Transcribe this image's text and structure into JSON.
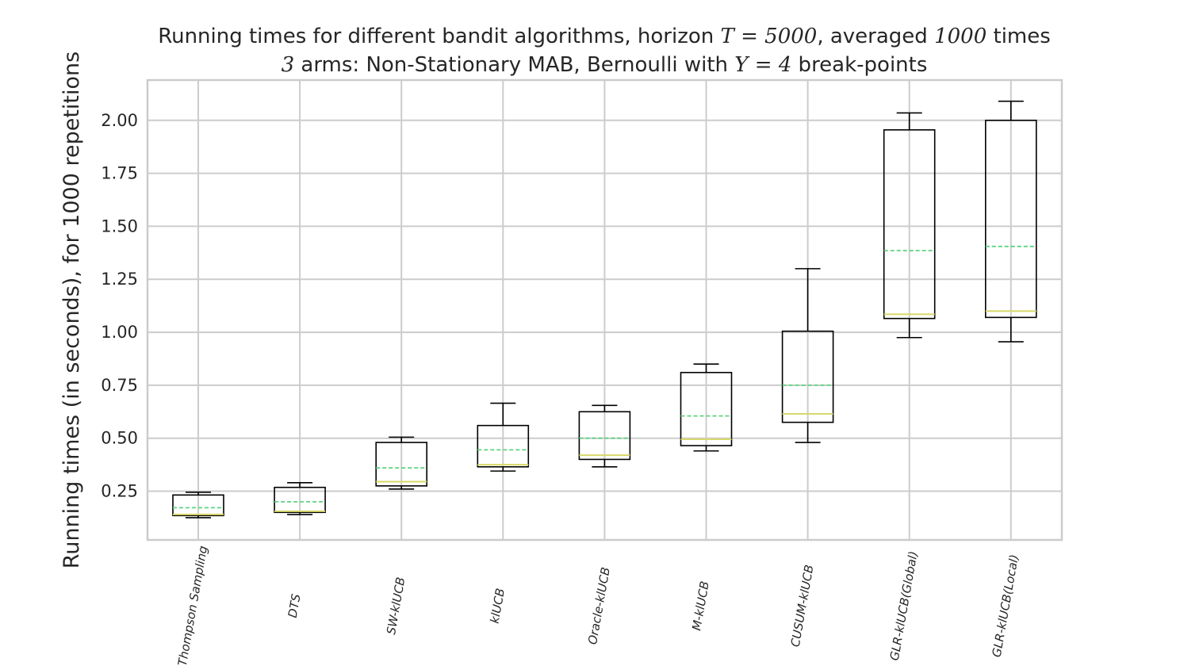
{
  "chart_data": {
    "type": "box",
    "title_line1": {
      "prefix": "Running times for different bandit algorithms, horizon ",
      "math1": "T = 5000",
      "middle": ", averaged ",
      "math2": "1000",
      "suffix": " times"
    },
    "title_line2": {
      "math1": "3",
      "middle": " arms: Non-Stationary MAB, Bernoulli with ",
      "math2": "Υ = 4",
      "suffix": " break-points"
    },
    "ylabel": "Running times (in seconds), for 1000 repetitions",
    "xlabel": "",
    "ylim": [
      0.02,
      2.19
    ],
    "yticks": [
      0.25,
      0.5,
      0.75,
      1.0,
      1.25,
      1.5,
      1.75,
      2.0
    ],
    "ytick_labels": [
      "0.25",
      "0.50",
      "0.75",
      "1.00",
      "1.25",
      "1.50",
      "1.75",
      "2.00"
    ],
    "grid": true,
    "categories": [
      "Thompson Sampling",
      "DTS",
      "SW-klUCB",
      "klUCB",
      "Oracle-klUCB",
      "M-klUCB",
      "CUSUM-klUCB",
      "GLR-klUCB(Global)",
      "GLR-klUCB(Local)"
    ],
    "boxes": [
      {
        "whislo": 0.125,
        "q1": 0.135,
        "med": 0.14,
        "mean": 0.172,
        "q3": 0.232,
        "whishi": 0.245
      },
      {
        "whislo": 0.14,
        "q1": 0.15,
        "med": 0.155,
        "mean": 0.2,
        "q3": 0.268,
        "whishi": 0.29
      },
      {
        "whislo": 0.26,
        "q1": 0.275,
        "med": 0.295,
        "mean": 0.36,
        "q3": 0.48,
        "whishi": 0.505
      },
      {
        "whislo": 0.345,
        "q1": 0.365,
        "med": 0.375,
        "mean": 0.445,
        "q3": 0.56,
        "whishi": 0.665
      },
      {
        "whislo": 0.365,
        "q1": 0.4,
        "med": 0.42,
        "mean": 0.5,
        "q3": 0.625,
        "whishi": 0.655
      },
      {
        "whislo": 0.44,
        "q1": 0.465,
        "med": 0.495,
        "mean": 0.605,
        "q3": 0.81,
        "whishi": 0.85
      },
      {
        "whislo": 0.48,
        "q1": 0.575,
        "med": 0.615,
        "mean": 0.75,
        "q3": 1.005,
        "whishi": 1.3
      },
      {
        "whislo": 0.975,
        "q1": 1.065,
        "med": 1.085,
        "mean": 1.385,
        "q3": 1.955,
        "whishi": 2.035
      },
      {
        "whislo": 0.955,
        "q1": 1.07,
        "med": 1.1,
        "mean": 1.405,
        "q3": 2.0,
        "whishi": 2.09
      }
    ],
    "colors": {
      "box": "#000000",
      "median": "#d8d86a",
      "mean": "#5cd480",
      "grid": "#cccccc",
      "frame": "#cccccc",
      "text": "#262626"
    }
  }
}
